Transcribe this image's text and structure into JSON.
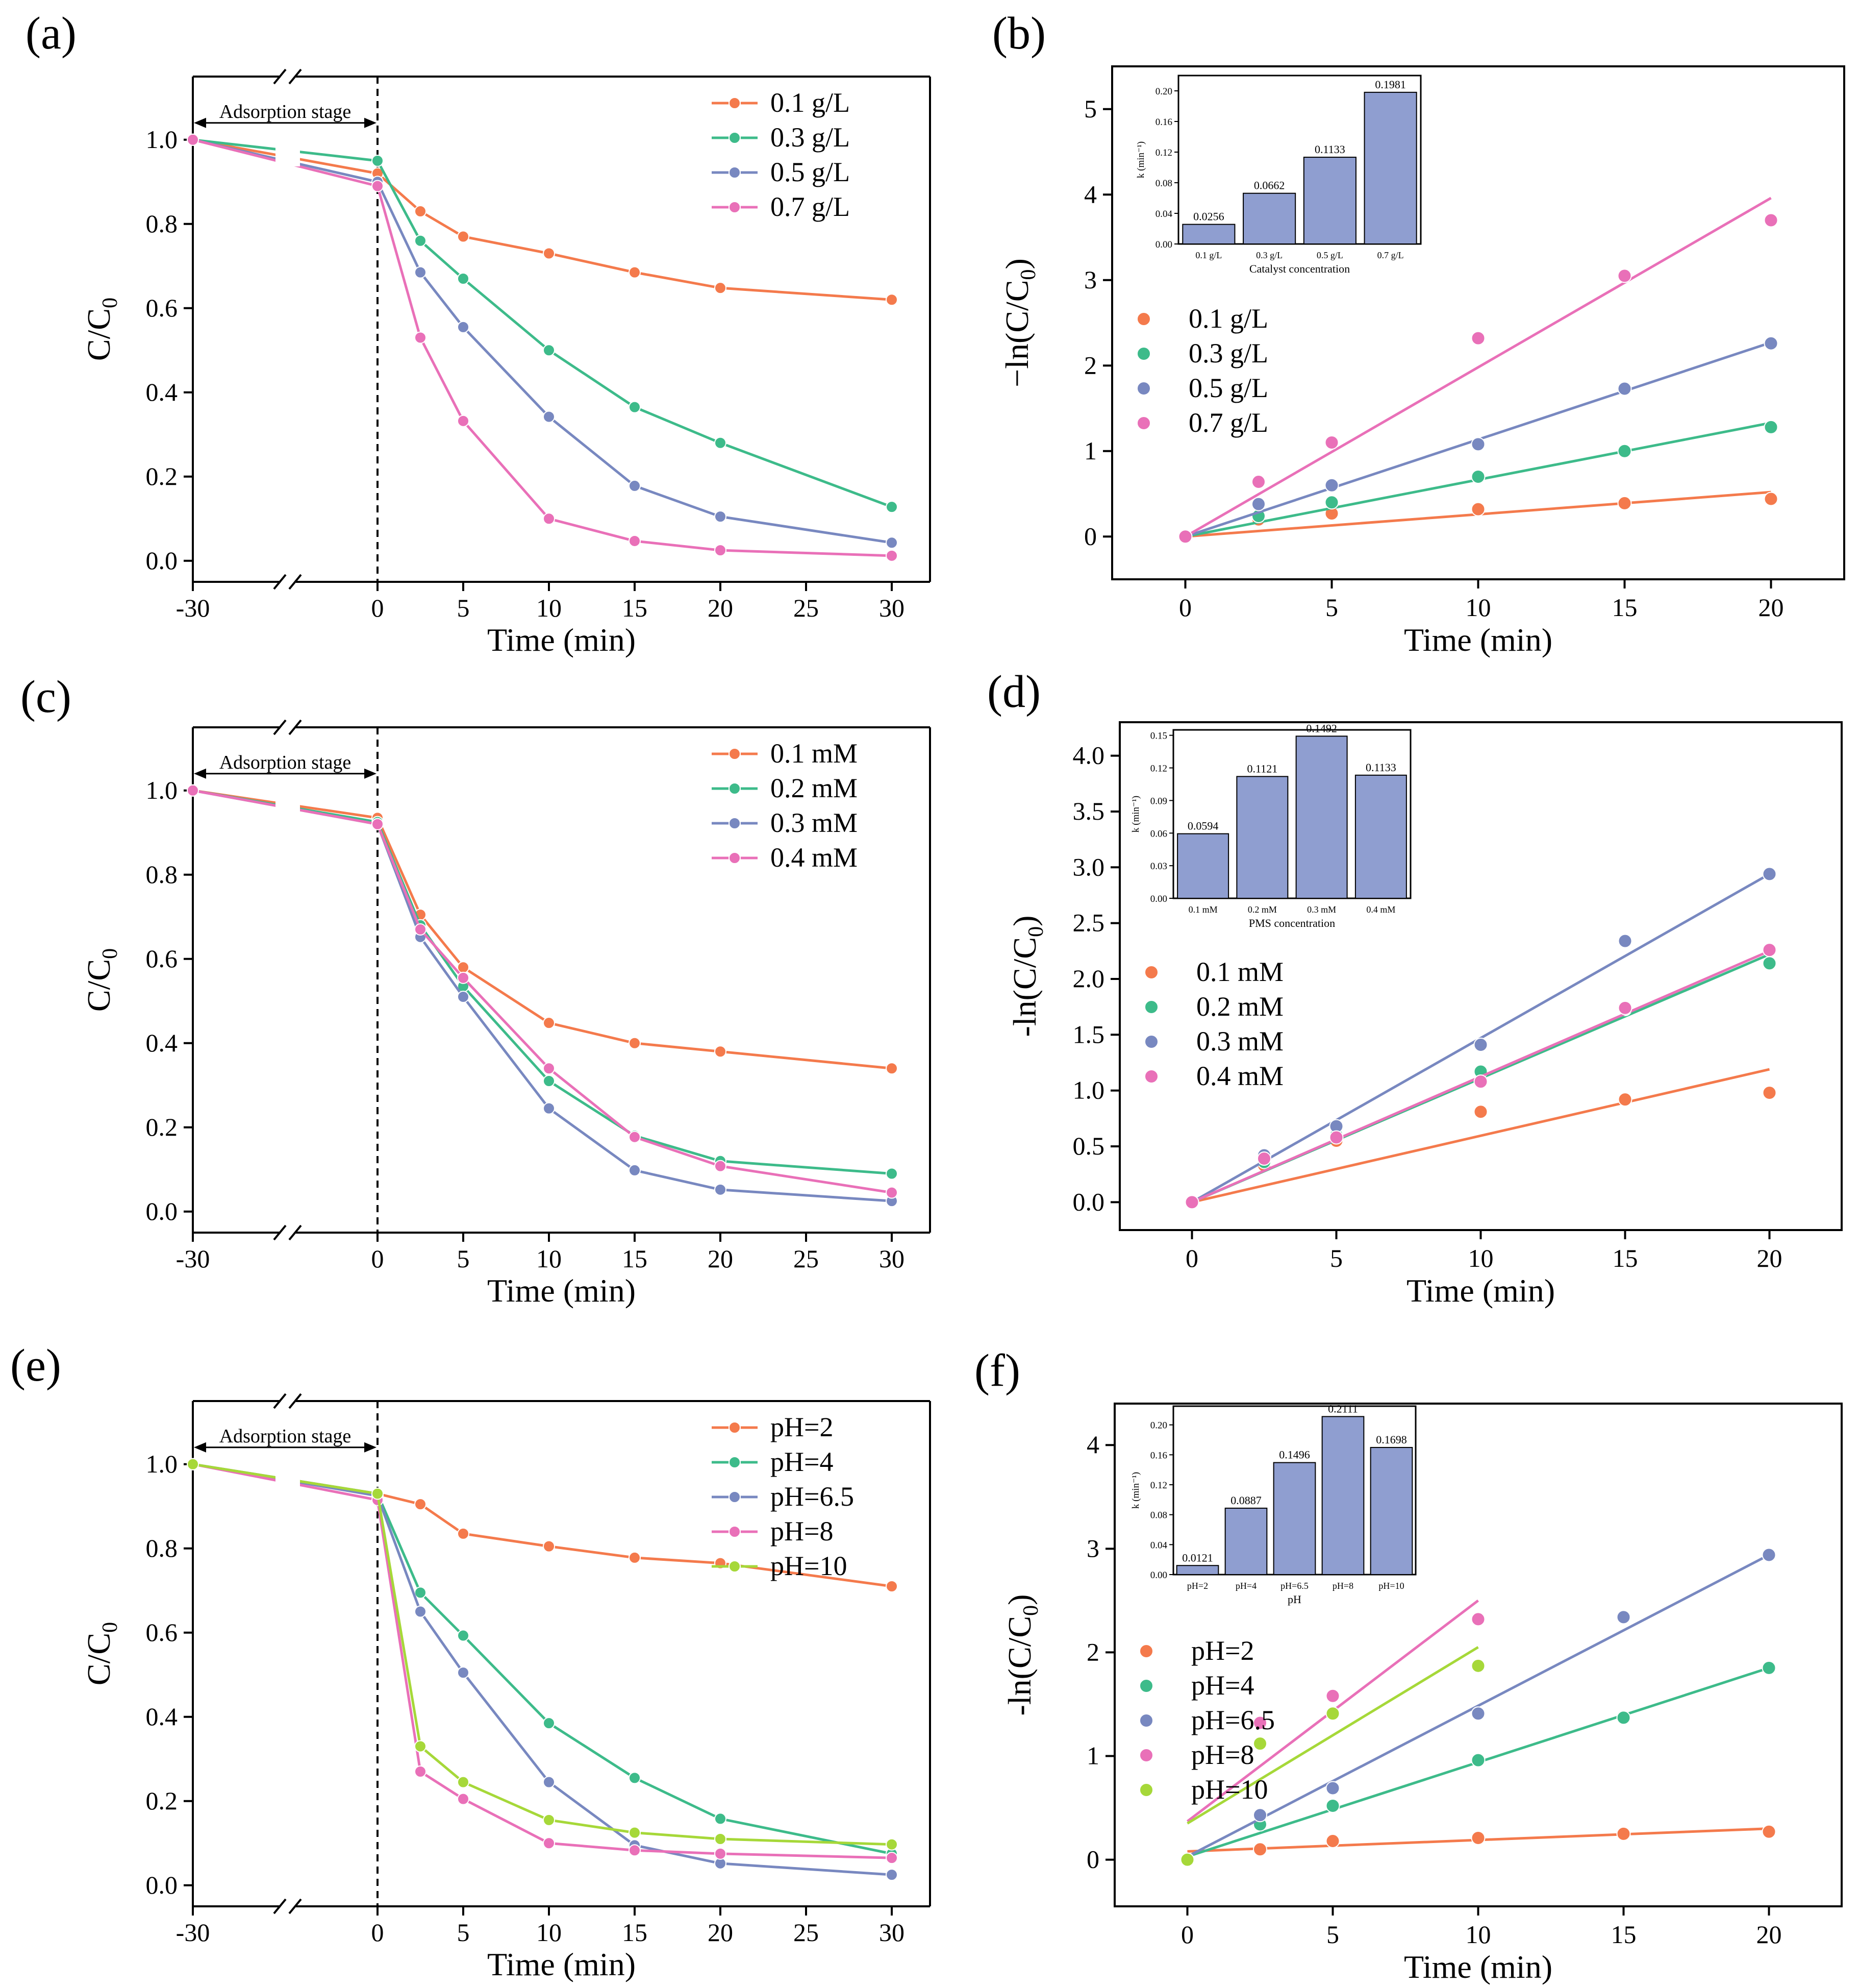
{
  "figure": {
    "description_free": true
  },
  "colors": {
    "orange": "#f47a4c",
    "green": "#3dbb8a",
    "blue": "#7888c0",
    "pink": "#e970b8",
    "lime": "#a6d839",
    "bar": "#8f9ed0",
    "axis": "#000000"
  },
  "chart_data": [
    {
      "panel_label": "(a)",
      "type": "line",
      "broken_x": true,
      "x": [
        -30,
        0,
        2.5,
        5,
        10,
        15,
        20,
        30
      ],
      "series": [
        {
          "name": "0.1 g/L",
          "color": "orange",
          "values": [
            1.0,
            0.92,
            0.83,
            0.77,
            0.73,
            0.685,
            0.648,
            0.62
          ]
        },
        {
          "name": "0.3 g/L",
          "color": "green",
          "values": [
            1.0,
            0.95,
            0.76,
            0.67,
            0.5,
            0.365,
            0.28,
            0.128
          ]
        },
        {
          "name": "0.5 g/L",
          "color": "blue",
          "values": [
            1.0,
            0.9,
            0.685,
            0.555,
            0.342,
            0.178,
            0.105,
            0.043
          ]
        },
        {
          "name": "0.7 g/L",
          "color": "pink",
          "values": [
            1.0,
            0.89,
            0.53,
            0.332,
            0.1,
            0.047,
            0.025,
            0.012
          ]
        }
      ],
      "xticks": [
        -30,
        0,
        5,
        10,
        15,
        20,
        25,
        30
      ],
      "yticks": [
        0.0,
        0.2,
        0.4,
        0.6,
        0.8,
        1.0
      ],
      "ytick_labels": [
        "0.0",
        "0.2",
        "0.4",
        "0.6",
        "0.8",
        "1.0"
      ],
      "ylim": [
        -0.05,
        1.15
      ],
      "xlabel": "Time (min)",
      "ylabel_main": "C/C",
      "ylabel_sub": "0",
      "annotation": "Adsorption stage"
    },
    {
      "panel_label": "(b)",
      "type": "scatter",
      "fit_lines": true,
      "xticks": [
        0,
        5,
        10,
        15,
        20
      ],
      "yticks": [
        0,
        1,
        2,
        3,
        4,
        5
      ],
      "xlim": [
        -2.5,
        22.5
      ],
      "ylim": [
        -0.5,
        5.5
      ],
      "xlabel": "Time (min)",
      "ylabel_main": "−ln(C/C",
      "ylabel_sub": "0",
      "ylabel_end": ")",
      "series": [
        {
          "name": "0.1 g/L",
          "color": "orange",
          "x": [
            0,
            2.5,
            5,
            10,
            15,
            20
          ],
          "values": [
            0,
            0.2,
            0.27,
            0.32,
            0.39,
            0.44
          ],
          "fit": [
            [
              0,
              0.0
            ],
            [
              20,
              0.52
            ]
          ]
        },
        {
          "name": "0.3 g/L",
          "color": "green",
          "x": [
            0,
            2.5,
            5,
            10,
            15,
            20
          ],
          "values": [
            0,
            0.24,
            0.4,
            0.7,
            1.0,
            1.28
          ],
          "fit": [
            [
              0,
              0.0
            ],
            [
              20,
              1.33
            ]
          ]
        },
        {
          "name": "0.5 g/L",
          "color": "blue",
          "x": [
            0,
            2.5,
            5,
            10,
            15,
            20
          ],
          "values": [
            0,
            0.38,
            0.6,
            1.08,
            1.73,
            2.26
          ],
          "fit": [
            [
              0,
              0.0
            ],
            [
              20,
              2.27
            ]
          ]
        },
        {
          "name": "0.7 g/L",
          "color": "pink",
          "x": [
            0,
            2.5,
            5,
            10,
            15,
            20
          ],
          "values": [
            0,
            0.64,
            1.1,
            2.32,
            3.05,
            3.7
          ],
          "fit": [
            [
              0,
              0.0
            ],
            [
              20,
              3.96
            ]
          ]
        }
      ],
      "inset": {
        "type": "bar",
        "categories": [
          "0.1 g/L",
          "0.3 g/L",
          "0.5 g/L",
          "0.7 g/L"
        ],
        "values": [
          0.0256,
          0.0662,
          0.1133,
          0.1981
        ],
        "labels": [
          "0.0256",
          "0.0662",
          "0.1133",
          "0.1981"
        ],
        "ylim": [
          0,
          0.22
        ],
        "yticks": [
          0.0,
          0.04,
          0.08,
          0.12,
          0.16,
          0.2
        ],
        "ytick_labels": [
          "0.00",
          "0.04",
          "0.08",
          "0.12",
          "0.16",
          "0.20"
        ],
        "xlabel": "Catalyst concentration",
        "ylabel": "k (min⁻¹)"
      }
    },
    {
      "panel_label": "(c)",
      "type": "line",
      "broken_x": true,
      "x": [
        -30,
        0,
        2.5,
        5,
        10,
        15,
        20,
        30
      ],
      "series": [
        {
          "name": "0.1 mM",
          "color": "orange",
          "values": [
            1.0,
            0.935,
            0.705,
            0.58,
            0.448,
            0.4,
            0.38,
            0.34
          ]
        },
        {
          "name": "0.2 mM",
          "color": "green",
          "values": [
            1.0,
            0.925,
            0.68,
            0.535,
            0.31,
            0.18,
            0.12,
            0.09
          ]
        },
        {
          "name": "0.3 mM",
          "color": "blue",
          "values": [
            1.0,
            0.92,
            0.652,
            0.51,
            0.245,
            0.098,
            0.052,
            0.025
          ]
        },
        {
          "name": "0.4 mM",
          "color": "pink",
          "values": [
            1.0,
            0.92,
            0.67,
            0.555,
            0.34,
            0.177,
            0.108,
            0.045
          ]
        }
      ],
      "xticks": [
        -30,
        0,
        5,
        10,
        15,
        20,
        25,
        30
      ],
      "yticks": [
        0.0,
        0.2,
        0.4,
        0.6,
        0.8,
        1.0
      ],
      "ytick_labels": [
        "0.0",
        "0.2",
        "0.4",
        "0.6",
        "0.8",
        "1.0"
      ],
      "ylim": [
        -0.05,
        1.15
      ],
      "xlabel": "Time (min)",
      "ylabel_main": "C/C",
      "ylabel_sub": "0",
      "annotation": "Adsorption stage"
    },
    {
      "panel_label": "(d)",
      "type": "scatter",
      "fit_lines": true,
      "xticks": [
        0,
        5,
        10,
        15,
        20
      ],
      "yticks": [
        0.0,
        0.5,
        1.0,
        1.5,
        2.0,
        2.5,
        3.0,
        3.5,
        4.0
      ],
      "ytick_labels": [
        "0.0",
        "0.5",
        "1.0",
        "1.5",
        "2.0",
        "2.5",
        "3.0",
        "3.5",
        "4.0"
      ],
      "xlim": [
        -2.5,
        22.5
      ],
      "ylim": [
        -0.25,
        4.3
      ],
      "xlabel": "Time (min)",
      "ylabel_main": "-ln(C/C",
      "ylabel_sub": "0",
      "ylabel_end": ")",
      "series": [
        {
          "name": "0.1 mM",
          "color": "orange",
          "x": [
            0,
            2.5,
            5,
            10,
            15,
            20
          ],
          "values": [
            0,
            0.33,
            0.55,
            0.81,
            0.92,
            0.98
          ],
          "fit": [
            [
              0,
              0.0
            ],
            [
              20,
              1.19
            ]
          ]
        },
        {
          "name": "0.2 mM",
          "color": "green",
          "x": [
            0,
            2.5,
            5,
            10,
            15,
            20
          ],
          "values": [
            0,
            0.36,
            0.6,
            1.17,
            1.73,
            2.14
          ],
          "fit": [
            [
              0,
              0.0
            ],
            [
              20,
              2.22
            ]
          ]
        },
        {
          "name": "0.3 mM",
          "color": "blue",
          "x": [
            0,
            2.5,
            5,
            10,
            15,
            20
          ],
          "values": [
            0,
            0.42,
            0.68,
            1.41,
            2.34,
            2.94
          ],
          "fit": [
            [
              0,
              0.0
            ],
            [
              20,
              2.94
            ]
          ]
        },
        {
          "name": "0.4 mM",
          "color": "pink",
          "x": [
            0,
            2.5,
            5,
            10,
            15,
            20
          ],
          "values": [
            0,
            0.39,
            0.58,
            1.08,
            1.74,
            2.26
          ],
          "fit": [
            [
              0,
              0.0
            ],
            [
              20,
              2.25
            ]
          ]
        }
      ],
      "inset": {
        "type": "bar",
        "categories": [
          "0.1 mM",
          "0.2 mM",
          "0.3 mM",
          "0.4 mM"
        ],
        "values": [
          0.0594,
          0.1121,
          0.1492,
          0.1133
        ],
        "labels": [
          "0.0594",
          "0.1121",
          "0.1492",
          "0.1133"
        ],
        "ylim": [
          0,
          0.155
        ],
        "yticks": [
          0.0,
          0.03,
          0.06,
          0.09,
          0.12,
          0.15
        ],
        "ytick_labels": [
          "0.00",
          "0.03",
          "0.06",
          "0.09",
          "0.12",
          "0.15"
        ],
        "xlabel": "PMS concentration",
        "ylabel": "k (min⁻¹)"
      }
    },
    {
      "panel_label": "(e)",
      "type": "line",
      "broken_x": true,
      "x": [
        -30,
        0,
        2.5,
        5,
        10,
        15,
        20,
        30
      ],
      "series": [
        {
          "name": "pH=2",
          "color": "orange",
          "values": [
            1.0,
            0.93,
            0.905,
            0.835,
            0.805,
            0.778,
            0.765,
            0.71
          ]
        },
        {
          "name": "pH=4",
          "color": "green",
          "values": [
            1.0,
            0.93,
            0.695,
            0.593,
            0.385,
            0.255,
            0.158,
            0.075
          ]
        },
        {
          "name": "pH=6.5",
          "color": "blue",
          "values": [
            1.0,
            0.925,
            0.65,
            0.505,
            0.245,
            0.095,
            0.052,
            0.025
          ]
        },
        {
          "name": "pH=8",
          "color": "pink",
          "values": [
            1.0,
            0.915,
            0.27,
            0.205,
            0.1,
            0.083,
            0.075,
            0.065
          ]
        },
        {
          "name": "pH=10",
          "color": "lime",
          "values": [
            1.0,
            0.93,
            0.33,
            0.245,
            0.155,
            0.125,
            0.11,
            0.097
          ]
        }
      ],
      "xticks": [
        -30,
        0,
        5,
        10,
        15,
        20,
        25,
        30
      ],
      "yticks": [
        0.0,
        0.2,
        0.4,
        0.6,
        0.8,
        1.0
      ],
      "ytick_labels": [
        "0.0",
        "0.2",
        "0.4",
        "0.6",
        "0.8",
        "1.0"
      ],
      "ylim": [
        -0.05,
        1.15
      ],
      "xlabel": "Time (min)",
      "ylabel_main": "C/C",
      "ylabel_sub": "0",
      "annotation": "Adsorption stage"
    },
    {
      "panel_label": "(f)",
      "type": "scatter",
      "fit_lines": true,
      "xticks": [
        0,
        5,
        10,
        15,
        20
      ],
      "yticks": [
        0,
        1,
        2,
        3,
        4
      ],
      "xlim": [
        -2.5,
        22.5
      ],
      "ylim": [
        -0.45,
        4.4
      ],
      "xlabel": "Time (min)",
      "ylabel_main": "-ln(C/C",
      "ylabel_sub": "0",
      "ylabel_end": ")",
      "series": [
        {
          "name": "pH=2",
          "color": "orange",
          "x": [
            0,
            2.5,
            5,
            10,
            15,
            20
          ],
          "values": [
            0,
            0.1,
            0.18,
            0.21,
            0.25,
            0.27
          ],
          "fit": [
            [
              0,
              0.08
            ],
            [
              20,
              0.3
            ]
          ]
        },
        {
          "name": "pH=4",
          "color": "green",
          "x": [
            0,
            2.5,
            5,
            10,
            15,
            20
          ],
          "values": [
            0,
            0.34,
            0.52,
            0.96,
            1.37,
            1.85
          ],
          "fit": [
            [
              0,
              0.03
            ],
            [
              20,
              1.85
            ]
          ]
        },
        {
          "name": "pH=6.5",
          "color": "blue",
          "x": [
            0,
            2.5,
            5,
            10,
            15,
            20
          ],
          "values": [
            0,
            0.43,
            0.69,
            1.41,
            2.34,
            2.94
          ],
          "fit": [
            [
              0,
              0.03
            ],
            [
              20,
              2.94
            ]
          ]
        },
        {
          "name": "pH=8",
          "color": "pink",
          "x": [
            0,
            2.5,
            5,
            10
          ],
          "values": [
            0,
            1.32,
            1.58,
            2.32
          ],
          "fit": [
            [
              0,
              0.37
            ],
            [
              10,
              2.5
            ]
          ]
        },
        {
          "name": "pH=10",
          "color": "lime",
          "x": [
            0,
            2.5,
            5,
            10
          ],
          "values": [
            0,
            1.12,
            1.41,
            1.87
          ],
          "fit": [
            [
              0,
              0.35
            ],
            [
              10,
              2.05
            ]
          ]
        }
      ],
      "inset": {
        "type": "bar",
        "categories": [
          "pH=2",
          "pH=4",
          "pH=6.5",
          "pH=8",
          "pH=10"
        ],
        "values": [
          0.0121,
          0.0887,
          0.1496,
          0.2111,
          0.1698
        ],
        "labels": [
          "0.0121",
          "0.0887",
          "0.1496",
          "0.2111",
          "0.1698"
        ],
        "ylim": [
          0,
          0.225
        ],
        "yticks": [
          0.0,
          0.04,
          0.08,
          0.12,
          0.16,
          0.2
        ],
        "ytick_labels": [
          "0.00",
          "0.04",
          "0.08",
          "0.12",
          "0.16",
          "0.20"
        ],
        "xlabel": "pH",
        "ylabel": "k (min⁻¹)"
      }
    }
  ]
}
